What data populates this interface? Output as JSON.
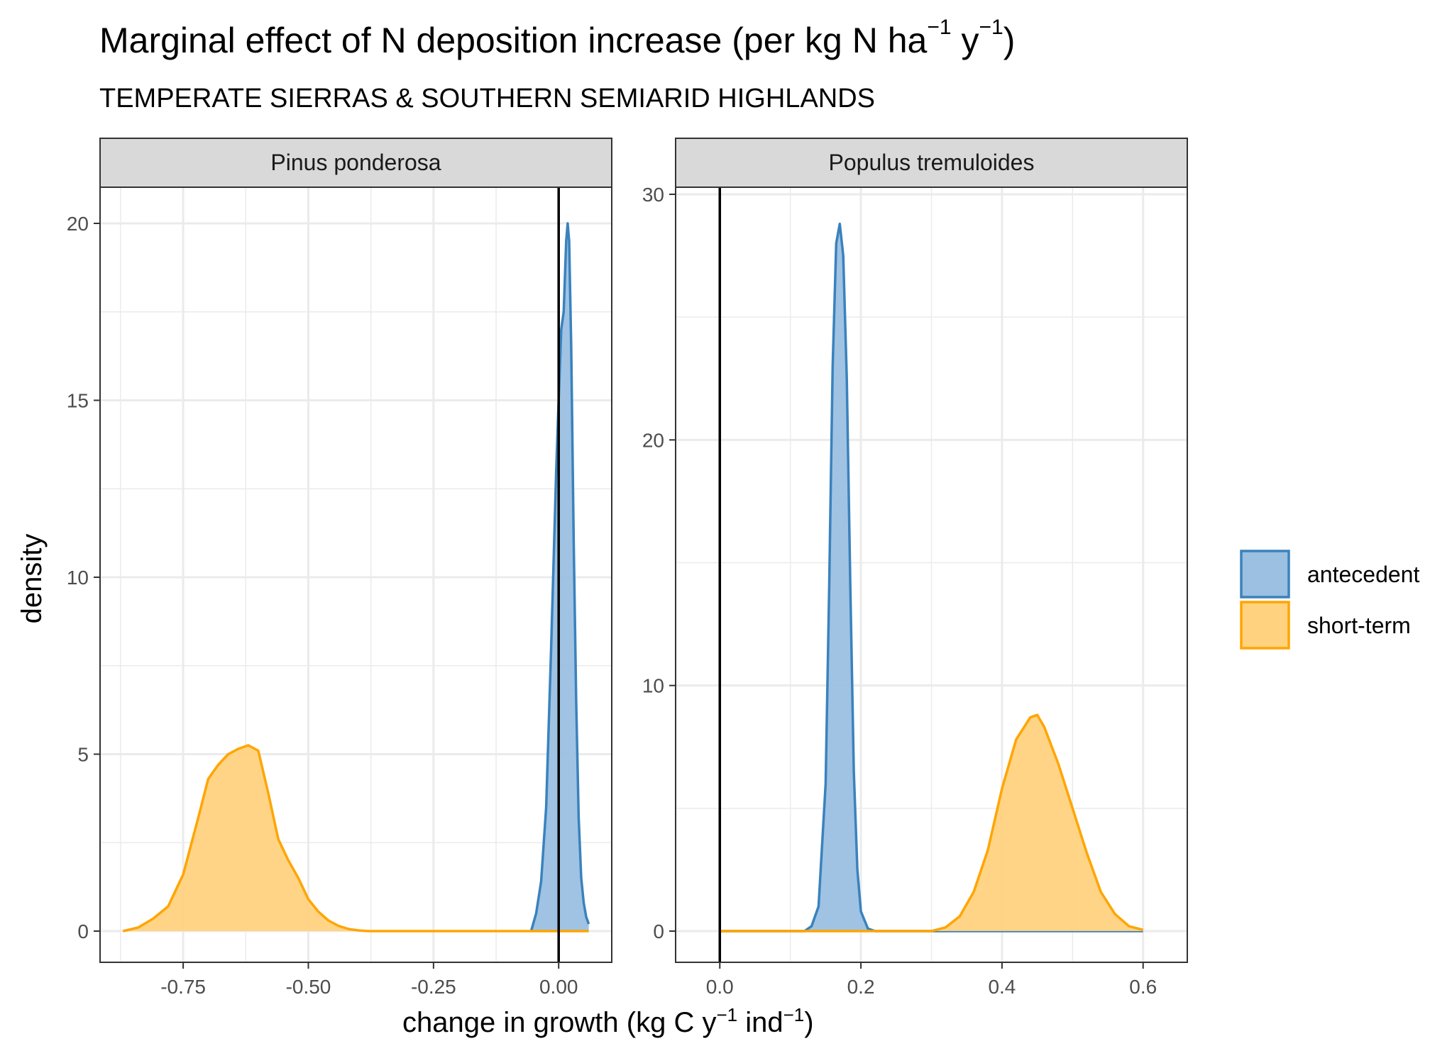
{
  "title": {
    "main": "Marginal effect of N deposition increase (per kg N ha",
    "sup1": "−1",
    "mid": " y",
    "sup2": "−1",
    "end": ")"
  },
  "subtitle": "TEMPERATE SIERRAS & SOUTHERN SEMIARID HIGHLANDS",
  "xlabel": {
    "pre": "change in growth (kg C y",
    "sup1": "−1",
    "mid": " ind",
    "sup2": "−1",
    "end": ")"
  },
  "ylabel": "density",
  "colors": {
    "antecedent_line": "#3a82bd",
    "antecedent_fill": "#9bc0e1",
    "short_term_line": "#ffa500",
    "short_term_fill": "#ffd27f",
    "strip_bg": "#d9d9d9",
    "grid": "#ebebeb"
  },
  "legend": [
    {
      "key": "antecedent",
      "label": "antecedent"
    },
    {
      "key": "short_term",
      "label": "short-term"
    }
  ],
  "chart_data": [
    {
      "type": "area",
      "panel": "Pinus ponderosa",
      "xlim": [
        -0.87,
        0.06
      ],
      "ylim": [
        0,
        20
      ],
      "x_ticks": [
        -0.75,
        -0.5,
        -0.25,
        0.0
      ],
      "x_tick_labels": [
        "-0.75",
        "-0.50",
        "-0.25",
        "0.00"
      ],
      "y_ticks": [
        0,
        5,
        10,
        15,
        20
      ],
      "y_tick_labels": [
        "0",
        "5",
        "10",
        "15",
        "20"
      ],
      "vline_x": 0.0,
      "series": [
        {
          "key": "antecedent",
          "x": [
            -0.055,
            -0.045,
            -0.035,
            -0.025,
            -0.015,
            -0.005,
            0.0,
            0.005,
            0.01,
            0.015,
            0.018,
            0.021,
            0.025,
            0.03,
            0.035,
            0.04,
            0.045,
            0.05,
            0.055,
            0.06
          ],
          "y": [
            0,
            0.5,
            1.4,
            3.5,
            8.0,
            13.0,
            15.0,
            17.0,
            17.5,
            19.5,
            20.0,
            19.5,
            16.5,
            11.0,
            6.5,
            3.2,
            1.5,
            0.8,
            0.4,
            0.2
          ]
        },
        {
          "key": "short_term",
          "x": [
            -0.87,
            -0.84,
            -0.81,
            -0.78,
            -0.75,
            -0.72,
            -0.7,
            -0.68,
            -0.66,
            -0.64,
            -0.62,
            -0.6,
            -0.58,
            -0.56,
            -0.54,
            -0.52,
            -0.5,
            -0.48,
            -0.46,
            -0.44,
            -0.42,
            -0.4,
            -0.38,
            -0.3,
            -0.2,
            -0.1,
            0.0,
            0.06
          ],
          "y": [
            0,
            0.1,
            0.35,
            0.7,
            1.6,
            3.2,
            4.3,
            4.7,
            5.0,
            5.15,
            5.25,
            5.1,
            3.9,
            2.6,
            2.0,
            1.5,
            0.9,
            0.55,
            0.3,
            0.15,
            0.06,
            0.02,
            0,
            0,
            0,
            0,
            0,
            0
          ]
        }
      ]
    },
    {
      "type": "area",
      "panel": "Populus tremuloides",
      "xlim": [
        -0.03,
        0.63
      ],
      "ylim": [
        0,
        30
      ],
      "x_ticks": [
        0.0,
        0.2,
        0.4,
        0.6
      ],
      "x_tick_labels": [
        "0.0",
        "0.2",
        "0.4",
        "0.6"
      ],
      "y_ticks": [
        0,
        10,
        20,
        30
      ],
      "y_tick_labels": [
        "0",
        "10",
        "20",
        "30"
      ],
      "vline_x": 0.0,
      "series": [
        {
          "key": "antecedent",
          "x": [
            0.0,
            0.12,
            0.13,
            0.14,
            0.15,
            0.155,
            0.16,
            0.165,
            0.17,
            0.175,
            0.18,
            0.185,
            0.19,
            0.195,
            0.2,
            0.21,
            0.22,
            0.23,
            0.6
          ],
          "y": [
            0,
            0,
            0.2,
            1.0,
            6.0,
            14.0,
            23.0,
            28.0,
            28.8,
            27.5,
            22.5,
            14.0,
            6.5,
            2.5,
            0.8,
            0.1,
            0,
            0,
            0
          ]
        },
        {
          "key": "short_term",
          "x": [
            0.0,
            0.3,
            0.32,
            0.34,
            0.36,
            0.38,
            0.4,
            0.42,
            0.44,
            0.45,
            0.46,
            0.48,
            0.5,
            0.52,
            0.54,
            0.56,
            0.58,
            0.6
          ],
          "y": [
            0,
            0,
            0.15,
            0.6,
            1.6,
            3.3,
            5.8,
            7.8,
            8.7,
            8.8,
            8.3,
            6.8,
            5.0,
            3.2,
            1.6,
            0.7,
            0.2,
            0.05
          ]
        }
      ]
    }
  ]
}
